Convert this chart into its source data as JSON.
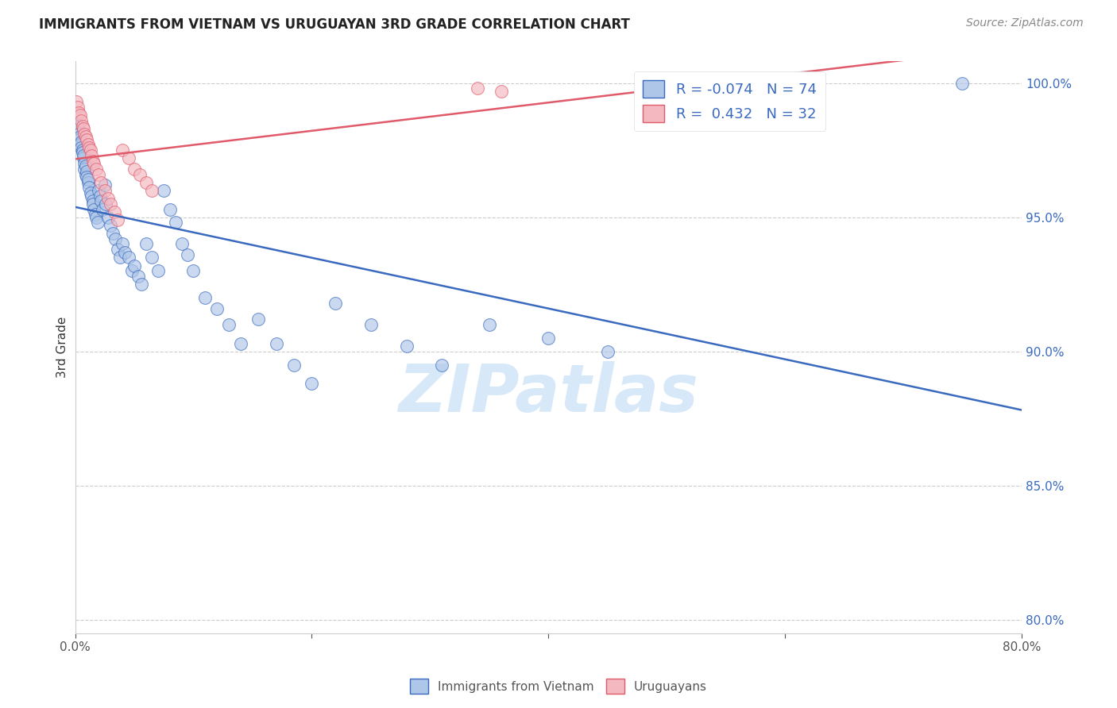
{
  "title": "IMMIGRANTS FROM VIETNAM VS URUGUAYAN 3RD GRADE CORRELATION CHART",
  "source": "Source: ZipAtlas.com",
  "ylabel": "3rd Grade",
  "right_yticks": [
    1.0,
    0.95,
    0.9,
    0.85,
    0.8
  ],
  "right_yticklabels": [
    "100.0%",
    "95.0%",
    "90.0%",
    "85.0%",
    "80.0%"
  ],
  "legend1_label": "R = -0.074   N = 74",
  "legend2_label": "R =  0.432   N = 32",
  "legend1_color": "#aec6e8",
  "legend2_color": "#f4b8c1",
  "blue_line_color": "#3a6abf",
  "pink_line_color": "#e05a6a",
  "xlim": [
    0.0,
    0.8
  ],
  "ylim": [
    0.795,
    1.008
  ],
  "blue_x": [
    0.001,
    0.002,
    0.002,
    0.003,
    0.003,
    0.004,
    0.004,
    0.005,
    0.005,
    0.006,
    0.006,
    0.007,
    0.007,
    0.008,
    0.008,
    0.009,
    0.009,
    0.01,
    0.01,
    0.011,
    0.011,
    0.012,
    0.013,
    0.014,
    0.015,
    0.015,
    0.016,
    0.017,
    0.018,
    0.019,
    0.02,
    0.021,
    0.022,
    0.023,
    0.025,
    0.026,
    0.028,
    0.03,
    0.032,
    0.034,
    0.036,
    0.038,
    0.04,
    0.042,
    0.045,
    0.048,
    0.05,
    0.053,
    0.056,
    0.06,
    0.065,
    0.07,
    0.075,
    0.08,
    0.085,
    0.09,
    0.095,
    0.1,
    0.11,
    0.12,
    0.13,
    0.14,
    0.155,
    0.17,
    0.185,
    0.2,
    0.22,
    0.25,
    0.28,
    0.31,
    0.35,
    0.4,
    0.45,
    0.75
  ],
  "blue_y": [
    0.985,
    0.983,
    0.984,
    0.981,
    0.979,
    0.98,
    0.977,
    0.978,
    0.976,
    0.975,
    0.974,
    0.972,
    0.973,
    0.97,
    0.968,
    0.966,
    0.969,
    0.967,
    0.965,
    0.963,
    0.964,
    0.961,
    0.959,
    0.958,
    0.956,
    0.955,
    0.953,
    0.951,
    0.95,
    0.948,
    0.96,
    0.958,
    0.956,
    0.953,
    0.962,
    0.955,
    0.95,
    0.947,
    0.944,
    0.942,
    0.938,
    0.935,
    0.94,
    0.937,
    0.935,
    0.93,
    0.932,
    0.928,
    0.925,
    0.94,
    0.935,
    0.93,
    0.96,
    0.953,
    0.948,
    0.94,
    0.936,
    0.93,
    0.92,
    0.916,
    0.91,
    0.903,
    0.912,
    0.903,
    0.895,
    0.888,
    0.918,
    0.91,
    0.902,
    0.895,
    0.91,
    0.905,
    0.9,
    1.0
  ],
  "pink_x": [
    0.001,
    0.002,
    0.003,
    0.004,
    0.005,
    0.006,
    0.007,
    0.008,
    0.009,
    0.01,
    0.011,
    0.012,
    0.013,
    0.014,
    0.015,
    0.016,
    0.018,
    0.02,
    0.022,
    0.025,
    0.028,
    0.03,
    0.033,
    0.036,
    0.04,
    0.045,
    0.05,
    0.055,
    0.06,
    0.065,
    0.34,
    0.36
  ],
  "pink_y": [
    0.993,
    0.991,
    0.989,
    0.988,
    0.986,
    0.984,
    0.983,
    0.981,
    0.98,
    0.979,
    0.977,
    0.976,
    0.975,
    0.973,
    0.971,
    0.97,
    0.968,
    0.966,
    0.963,
    0.96,
    0.957,
    0.955,
    0.952,
    0.949,
    0.975,
    0.972,
    0.968,
    0.966,
    0.963,
    0.96,
    0.998,
    0.997
  ]
}
